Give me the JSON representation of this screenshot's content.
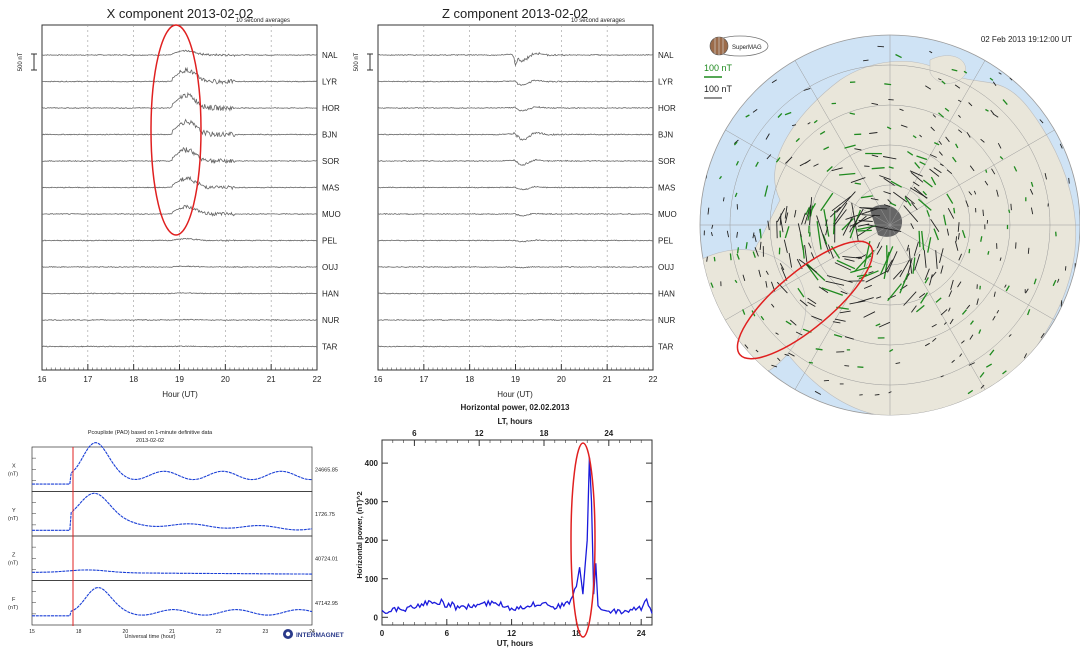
{
  "panel_x": {
    "title": "X component 2013-02-02",
    "note": "10 second averages",
    "scale": "500 nT",
    "xlabel": "Hour (UT)",
    "xticks": [
      "16",
      "17",
      "18",
      "19",
      "20",
      "21",
      "22"
    ],
    "stations": [
      "NAL",
      "LYR",
      "HOR",
      "BJN",
      "SOR",
      "MAS",
      "MUO",
      "PEL",
      "OUJ",
      "HAN",
      "NUR",
      "TAR"
    ]
  },
  "panel_z": {
    "title": "Z component 2013-02-02",
    "note": "10 second averages",
    "scale": "500 nT",
    "xlabel": "Hour (UT)",
    "xticks": [
      "16",
      "17",
      "18",
      "19",
      "20",
      "21",
      "22"
    ],
    "stations": [
      "NAL",
      "LYR",
      "HOR",
      "BJN",
      "SOR",
      "MAS",
      "MUO",
      "PEL",
      "OUJ",
      "HAN",
      "NUR",
      "TAR"
    ]
  },
  "map": {
    "timestamp": "02 Feb 2013 19:12:00  UT",
    "logo": "SuperMAG",
    "legend_green": "100 nT",
    "legend_black": "100 nT",
    "colors": {
      "ocean": "#cfe3f5",
      "land": "#e9e6da",
      "green": "#1f8a1f",
      "black": "#222222",
      "ellipse": "#e02020"
    }
  },
  "pc_panel": {
    "title": "Pcoupliste (PAO) based on 1-minute definitive data",
    "date": "2013-02-02",
    "xlabel": "Universal time (hour)",
    "xticks": [
      "15",
      "18",
      "20",
      "21",
      "22",
      "23",
      "24"
    ],
    "rows": [
      {
        "label": "X",
        "unit": "(nT)",
        "value": "24665.85"
      },
      {
        "label": "Y",
        "unit": "(nT)",
        "value": "1726.75"
      },
      {
        "label": "Z",
        "unit": "(nT)",
        "value": "40724.01"
      },
      {
        "label": "F",
        "unit": "(nT)",
        "value": "47142.95"
      }
    ],
    "logo": "INTERMAGNET",
    "color": "#1a3fd6"
  },
  "chart_data": [
    {
      "type": "line",
      "title": "X component 2013-02-02",
      "xlabel": "Hour (UT)",
      "xlim": [
        16,
        22
      ],
      "series_names": [
        "NAL",
        "LYR",
        "HOR",
        "BJN",
        "SOR",
        "MAS",
        "MUO",
        "PEL",
        "OUJ",
        "HAN",
        "NUR",
        "TAR"
      ],
      "peak_dip_hour": 19.0,
      "dip_nT": [
        -150,
        -400,
        -450,
        -450,
        -400,
        -320,
        -260,
        -60,
        -30,
        -20,
        -15,
        -10
      ]
    },
    {
      "type": "line",
      "title": "Z component 2013-02-02",
      "xlabel": "Hour (UT)",
      "xlim": [
        16,
        22
      ],
      "series_names": [
        "NAL",
        "LYR",
        "HOR",
        "BJN",
        "SOR",
        "MAS",
        "MUO",
        "PEL",
        "OUJ",
        "HAN",
        "NUR",
        "TAR"
      ],
      "peak_hour": 19.0,
      "amplitude_nT": [
        400,
        250,
        200,
        350,
        250,
        150,
        120,
        80,
        40,
        25,
        20,
        15
      ]
    },
    {
      "type": "line",
      "title": "Horizontal power, 02.02.2013",
      "xlabel": "UT, hours",
      "ylabel": "Horizontal power, (nT)^2",
      "top_axis_label": "LT, hours",
      "xlim": [
        0,
        25
      ],
      "ylim": [
        -20,
        460
      ],
      "xticks": [
        0,
        6,
        12,
        18,
        24
      ],
      "top_ticks": [
        6,
        12,
        18,
        24
      ],
      "yticks": [
        0,
        100,
        200,
        300,
        400
      ],
      "x": [
        0,
        1,
        2,
        3,
        4,
        5,
        5.5,
        6,
        6.5,
        7,
        8,
        9,
        10,
        11,
        12,
        13,
        14,
        15,
        16,
        17,
        17.5,
        18,
        18.3,
        18.6,
        19,
        19.2,
        19.4,
        19.6,
        19.8,
        20,
        20.3,
        21,
        22,
        23,
        24,
        24.5,
        25
      ],
      "y": [
        10,
        20,
        15,
        25,
        35,
        30,
        40,
        25,
        30,
        20,
        25,
        30,
        35,
        30,
        20,
        25,
        30,
        35,
        25,
        30,
        40,
        80,
        130,
        60,
        200,
        415,
        300,
        60,
        140,
        30,
        20,
        15,
        10,
        15,
        20,
        45,
        10
      ],
      "color": "#1a1adc"
    },
    {
      "type": "line",
      "title": "Pcoupliste (PAO) based on 1-minute definitive data",
      "xlabel": "Universal time (hour)",
      "series_names": [
        "X",
        "Y",
        "Z",
        "F"
      ],
      "event_hour": 19.1
    }
  ]
}
